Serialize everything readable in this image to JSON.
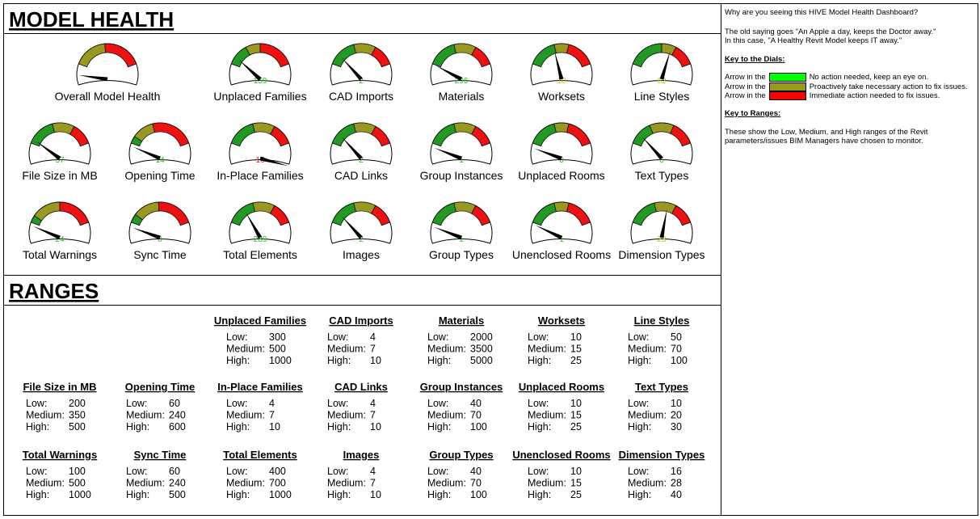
{
  "header": {
    "title": "MODEL HEALTH"
  },
  "ranges_header": {
    "title": "RANGES"
  },
  "range_labels": [
    "Low:",
    "Medium:",
    "High:"
  ],
  "gauges": [
    {
      "label": "Overall Model Health"
    },
    {
      "label": "Unplaced Families",
      "value": 159,
      "low": 300,
      "medium": 500,
      "high": 1000
    },
    {
      "label": "CAD Imports",
      "value": 2,
      "low": 4,
      "medium": 7,
      "high": 10
    },
    {
      "label": "Materials",
      "value": 296,
      "low": 2000,
      "medium": 3500,
      "high": 5000
    },
    {
      "label": "Worksets",
      "value": 10,
      "low": 10,
      "medium": 15,
      "high": 25
    },
    {
      "label": "Line Styles",
      "value": 62,
      "low": 50,
      "medium": 70,
      "high": 100
    },
    {
      "label": "File Size in MB",
      "value": 57,
      "low": 200,
      "medium": 350,
      "high": 500
    },
    {
      "label": "Opening Time",
      "value": 14,
      "low": 60,
      "medium": 240,
      "high": 600
    },
    {
      "label": "In-Place Families",
      "value": 16,
      "low": 4,
      "medium": 7,
      "high": 10
    },
    {
      "label": "CAD Links",
      "value": 2,
      "low": 4,
      "medium": 7,
      "high": 10
    },
    {
      "label": "Group Instances",
      "value": 1,
      "low": 40,
      "medium": 70,
      "high": 100
    },
    {
      "label": "Unplaced Rooms",
      "value": 0,
      "low": 10,
      "medium": 15,
      "high": 25
    },
    {
      "label": "Text Types",
      "value": 6,
      "low": 10,
      "medium": 20,
      "high": 30
    },
    {
      "label": "Total Warnings",
      "value": 24,
      "low": 100,
      "medium": 500,
      "high": 1000
    },
    {
      "label": "Sync Time",
      "value": 0,
      "low": 60,
      "medium": 240,
      "high": 500
    },
    {
      "label": "Total Elements",
      "value": 289,
      "low": 400,
      "medium": 700,
      "high": 1000
    },
    {
      "label": "Images",
      "value": 2,
      "low": 4,
      "medium": 7,
      "high": 10
    },
    {
      "label": "Group Types",
      "value": 1,
      "low": 40,
      "medium": 70,
      "high": 100
    },
    {
      "label": "Unenclosed Rooms",
      "value": 1,
      "low": 10,
      "medium": 15,
      "high": 25
    },
    {
      "label": "Dimension Types",
      "value": 23,
      "low": 16,
      "medium": 28,
      "high": 40
    }
  ],
  "side_panel": {
    "question": "Why are you seeing this HIVE Model Health Dashboard?",
    "saying_1": "The old saying goes \"An Apple a day, keeps the Doctor away.\"",
    "saying_2": "In this case, \"A Healthy Revit Model keeps IT away.\"",
    "dials_heading": "Key to the Dials:",
    "dial_keys": [
      {
        "prefix": "Arrow in the",
        "text": "No action needed, keep an eye on."
      },
      {
        "prefix": "Arrow in the",
        "text": "Proactively take necessary action to fix issues."
      },
      {
        "prefix": "Arrow in the",
        "text": "Immediate action needed to fix issues."
      }
    ],
    "ranges_heading": "Key to Ranges:",
    "ranges_text": "These show the Low, Medium, and High ranges of the Revit parameters/issues BIM Managers have chosen to monitor."
  }
}
